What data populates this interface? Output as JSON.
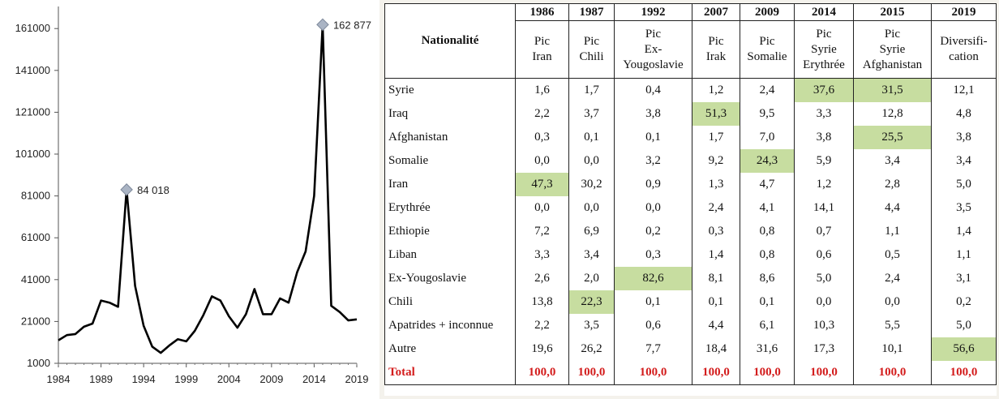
{
  "chart_data": [
    {
      "type": "line",
      "x": [
        1984,
        1985,
        1986,
        1987,
        1988,
        1989,
        1990,
        1991,
        1992,
        1993,
        1994,
        1995,
        1996,
        1997,
        1998,
        1999,
        2000,
        2001,
        2002,
        2003,
        2004,
        2005,
        2006,
        2007,
        2008,
        2009,
        2010,
        2011,
        2012,
        2013,
        2014,
        2015,
        2016,
        2017,
        2018,
        2019
      ],
      "series": [
        {
          "values": [
            12000,
            14500,
            15000,
            18500,
            20000,
            31000,
            30000,
            28000,
            84018,
            38000,
            19000,
            9000,
            6000,
            9500,
            12500,
            11500,
            16500,
            24000,
            33000,
            31000,
            23500,
            18000,
            24500,
            36500,
            24500,
            24500,
            32000,
            30000,
            44500,
            54500,
            81000,
            162877,
            28500,
            25500,
            21500,
            22000
          ]
        }
      ],
      "ylim": [
        1000,
        170000
      ],
      "yticks": [
        1000,
        21000,
        41000,
        61000,
        81000,
        101000,
        121000,
        141000,
        161000
      ],
      "ytick_labels": [
        "1000",
        "21000",
        "41000",
        "61000",
        "81000",
        "101000",
        "121000",
        "141000",
        "161000"
      ],
      "xticks": [
        1984,
        1989,
        1994,
        1999,
        2004,
        2009,
        2014,
        2019
      ],
      "xtick_labels": [
        "1984",
        "1989",
        "1994",
        "1999",
        "2004",
        "2009",
        "2014",
        "2019"
      ],
      "annotations": [
        {
          "x": 1992,
          "y": 84018,
          "label": "84 018"
        },
        {
          "x": 2015,
          "y": 162877,
          "label": "162 877"
        }
      ],
      "title": "",
      "xlabel": "",
      "ylabel": "",
      "grid": false,
      "line_color": "#000000",
      "marker_color": "#aab4c4"
    },
    {
      "type": "table",
      "corner_label": "Nationalité",
      "years": [
        "1986",
        "1987",
        "1992",
        "2007",
        "2009",
        "2014",
        "2015",
        "2019"
      ],
      "peaks": [
        [
          "Pic",
          "Iran"
        ],
        [
          "Pic",
          "Chili"
        ],
        [
          "Pic",
          "Ex-",
          "Yougoslavie"
        ],
        [
          "Pic",
          "Irak"
        ],
        [
          "Pic",
          "Somalie"
        ],
        [
          "Pic",
          "Syrie",
          "Erythrée"
        ],
        [
          "Pic",
          "Syrie",
          "Afghanistan"
        ],
        [
          "Diversifi-",
          "cation"
        ]
      ],
      "rows": [
        {
          "label": "Syrie",
          "values": [
            "1,6",
            "1,7",
            "0,4",
            "1,2",
            "2,4",
            "37,6",
            "31,5",
            "12,1"
          ],
          "highlight": [
            5,
            6
          ]
        },
        {
          "label": "Iraq",
          "values": [
            "2,2",
            "3,7",
            "3,8",
            "51,3",
            "9,5",
            "3,3",
            "12,8",
            "4,8"
          ],
          "highlight": [
            3
          ]
        },
        {
          "label": "Afghanistan",
          "values": [
            "0,3",
            "0,1",
            "0,1",
            "1,7",
            "7,0",
            "3,8",
            "25,5",
            "3,8"
          ],
          "highlight": [
            6
          ]
        },
        {
          "label": "Somalie",
          "values": [
            "0,0",
            "0,0",
            "3,2",
            "9,2",
            "24,3",
            "5,9",
            "3,4",
            "3,4"
          ],
          "highlight": [
            4
          ]
        },
        {
          "label": "Iran",
          "values": [
            "47,3",
            "30,2",
            "0,9",
            "1,3",
            "4,7",
            "1,2",
            "2,8",
            "5,0"
          ],
          "highlight": [
            0
          ]
        },
        {
          "label": "Erythrée",
          "values": [
            "0,0",
            "0,0",
            "0,0",
            "2,4",
            "4,1",
            "14,1",
            "4,4",
            "3,5"
          ],
          "highlight": []
        },
        {
          "label": "Ethiopie",
          "values": [
            "7,2",
            "6,9",
            "0,2",
            "0,3",
            "0,8",
            "0,7",
            "1,1",
            "1,4"
          ],
          "highlight": []
        },
        {
          "label": "Liban",
          "values": [
            "3,3",
            "3,4",
            "0,3",
            "1,4",
            "0,8",
            "0,6",
            "0,5",
            "1,1"
          ],
          "highlight": []
        },
        {
          "label": "Ex-Yougoslavie",
          "values": [
            "2,6",
            "2,0",
            "82,6",
            "8,1",
            "8,6",
            "5,0",
            "2,4",
            "3,1"
          ],
          "highlight": [
            2
          ]
        },
        {
          "label": "Chili",
          "values": [
            "13,8",
            "22,3",
            "0,1",
            "0,1",
            "0,1",
            "0,0",
            "0,0",
            "0,2"
          ],
          "highlight": [
            1
          ]
        },
        {
          "label": "Apatrides + inconnue",
          "values": [
            "2,2",
            "3,5",
            "0,6",
            "4,4",
            "6,1",
            "10,3",
            "5,5",
            "5,0"
          ],
          "highlight": []
        },
        {
          "label": "Autre",
          "values": [
            "19,6",
            "26,2",
            "7,7",
            "18,4",
            "31,6",
            "17,3",
            "10,1",
            "56,6"
          ],
          "highlight": [
            7
          ]
        }
      ],
      "total": {
        "label": "Total",
        "values": [
          "100,0",
          "100,0",
          "100,0",
          "100,0",
          "100,0",
          "100,0",
          "100,0",
          "100,0"
        ]
      },
      "highlight_color": "#c7dda0",
      "total_color": "#d31c1c"
    }
  ]
}
